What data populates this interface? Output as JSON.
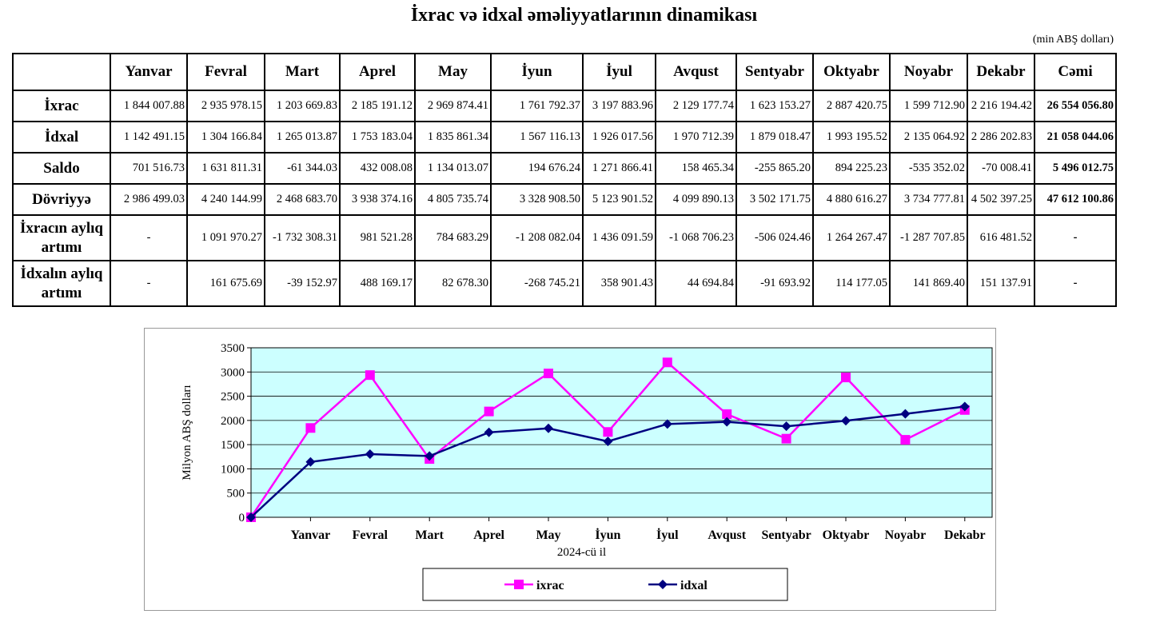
{
  "title": "İxrac və idxal əməliyyatlarının dinamikası",
  "unit": "(min ABŞ dolları)",
  "table": {
    "headers": [
      "",
      "Yanvar",
      "Fevral",
      "Mart",
      "Aprel",
      "May",
      "İyun",
      "İyul",
      "Avqust",
      "Sentyabr",
      "Oktyabr",
      "Noyabr",
      "Dekabr",
      "Cəmi"
    ],
    "rows": [
      {
        "label": "İxrac",
        "cells": [
          "1 844 007.88",
          "2 935 978.15",
          "1 203 669.83",
          "2 185 191.12",
          "2 969 874.41",
          "1 761 792.37",
          "3 197 883.96",
          "2 129 177.74",
          "1 623 153.27",
          "2 887 420.75",
          "1 599 712.90",
          "2 216 194.42",
          "26 554 056.80"
        ]
      },
      {
        "label": "İdxal",
        "cells": [
          "1 142 491.15",
          "1 304 166.84",
          "1 265 013.87",
          "1 753 183.04",
          "1 835 861.34",
          "1 567 116.13",
          "1 926 017.56",
          "1 970 712.39",
          "1 879 018.47",
          "1 993 195.52",
          "2 135 064.92",
          "2 286 202.83",
          "21 058 044.06"
        ]
      },
      {
        "label": "Saldo",
        "cells": [
          "701 516.73",
          "1 631 811.31",
          "-61 344.03",
          "432 008.08",
          "1 134 013.07",
          "194 676.24",
          "1 271 866.41",
          "158 465.34",
          "-255 865.20",
          "894 225.23",
          "-535 352.02",
          "-70 008.41",
          "5 496 012.75"
        ]
      },
      {
        "label": "Dövriyyə",
        "cells": [
          "2 986 499.03",
          "4 240 144.99",
          "2 468 683.70",
          "3 938 374.16",
          "4 805 735.74",
          "3 328 908.50",
          "5 123 901.52",
          "4 099 890.13",
          "3 502 171.75",
          "4 880 616.27",
          "3 734 777.81",
          "4 502 397.25",
          "47 612 100.86"
        ]
      },
      {
        "label": "İxracın aylıq artımı",
        "cells": [
          "-",
          "1 091 970.27",
          "-1 732 308.31",
          "981 521.28",
          "784 683.29",
          "-1 208 082.04",
          "1 436 091.59",
          "-1 068 706.23",
          "-506 024.46",
          "1 264 267.47",
          "-1 287 707.85",
          "616 481.52",
          "-"
        ]
      },
      {
        "label": "İdxalın aylıq artımı",
        "cells": [
          "-",
          "161 675.69",
          "-39 152.97",
          "488 169.17",
          "82 678.30",
          "-268 745.21",
          "358 901.43",
          "44 694.84",
          "-91 693.92",
          "114 177.05",
          "141 869.40",
          "151 137.91",
          "-"
        ]
      }
    ]
  },
  "chart_data": {
    "type": "line",
    "categories": [
      "",
      "Yanvar",
      "Fevral",
      "Mart",
      "Aprel",
      "May",
      "İyun",
      "İyul",
      "Avqust",
      "Sentyabr",
      "Oktyabr",
      "Noyabr",
      "Dekabr"
    ],
    "xlabel": "2024-cü il",
    "ylabel": "Milyon ABŞ dolları",
    "ylim": [
      0,
      3500
    ],
    "yticks": [
      0,
      500,
      1000,
      1500,
      2000,
      2500,
      3000,
      3500
    ],
    "grid": true,
    "legend": "bottom",
    "background": "#ccffff",
    "series": [
      {
        "name": "ixrac",
        "color": "#ff00ff",
        "marker": "square",
        "values": [
          0,
          1844.0,
          2936.0,
          1203.7,
          2185.2,
          2969.9,
          1761.8,
          3197.9,
          2129.2,
          1623.2,
          2887.4,
          1599.7,
          2216.2
        ]
      },
      {
        "name": "idxal",
        "color": "#000080",
        "marker": "diamond",
        "values": [
          0,
          1142.5,
          1304.2,
          1265.0,
          1753.2,
          1835.9,
          1567.1,
          1926.0,
          1970.7,
          1879.0,
          1993.2,
          2135.1,
          2286.2
        ]
      }
    ]
  }
}
